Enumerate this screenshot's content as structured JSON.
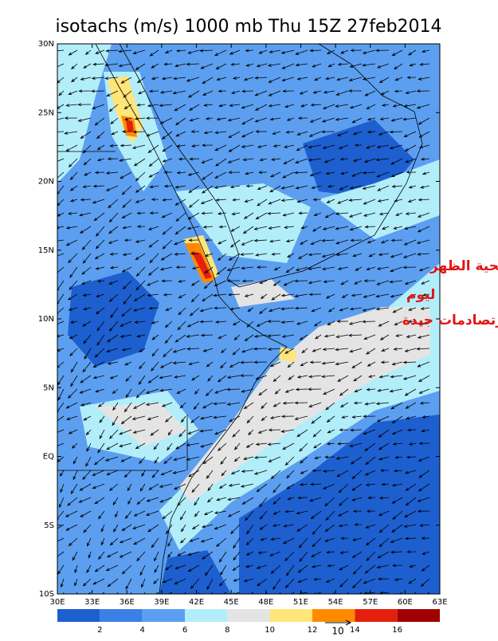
{
  "title": "isotachs (m/s) 1000 mb Thu 15Z 27feb2014",
  "map": {
    "lon_range": [
      30,
      63
    ],
    "lat_range": [
      -10,
      30
    ],
    "lon_ticks": [
      {
        "value": 30,
        "label": "30E"
      },
      {
        "value": 33,
        "label": "33E"
      },
      {
        "value": 36,
        "label": "36E"
      },
      {
        "value": 39,
        "label": "39E"
      },
      {
        "value": 42,
        "label": "42E"
      },
      {
        "value": 45,
        "label": "45E"
      },
      {
        "value": 48,
        "label": "48E"
      },
      {
        "value": 51,
        "label": "51E"
      },
      {
        "value": 54,
        "label": "54E"
      },
      {
        "value": 57,
        "label": "57E"
      },
      {
        "value": 60,
        "label": "60E"
      },
      {
        "value": 63,
        "label": "63E"
      }
    ],
    "lat_ticks": [
      {
        "value": 30,
        "label": "30N"
      },
      {
        "value": 25,
        "label": "25N"
      },
      {
        "value": 20,
        "label": "20N"
      },
      {
        "value": 15,
        "label": "15N"
      },
      {
        "value": 10,
        "label": "10N"
      },
      {
        "value": 5,
        "label": "5N"
      },
      {
        "value": 0,
        "label": "EQ"
      },
      {
        "value": -5,
        "label": "5S"
      },
      {
        "value": -10,
        "label": "10S"
      }
    ]
  },
  "annotation": [
    "=الرياح السطحية الظهر",
    "ليوم",
    "رتصادمات جيدة"
  ],
  "colorbar": {
    "colors": [
      "#1e5fcf",
      "#3b80e4",
      "#5c9ff0",
      "#b2eefa",
      "#e4e4e4",
      "#ffe57a",
      "#ff8a00",
      "#e4200c",
      "#a00000"
    ],
    "levels": [
      2,
      4,
      6,
      8,
      10,
      12,
      14,
      16
    ]
  },
  "vector_reference": "10"
}
